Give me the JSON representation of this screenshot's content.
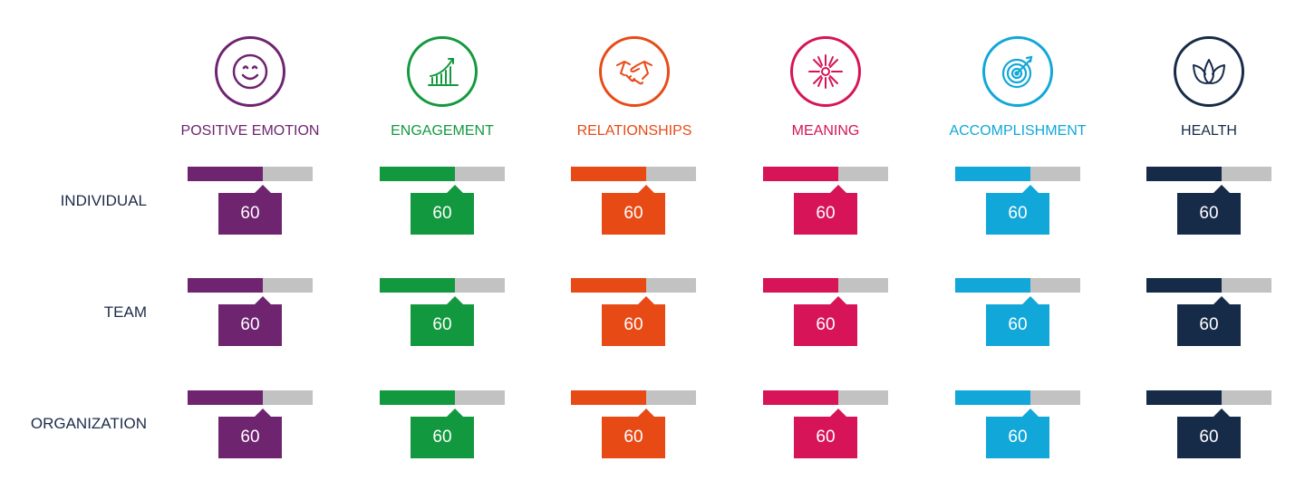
{
  "columns": [
    {
      "key": "positive-emotion",
      "label": "POSITIVE EMOTION",
      "color": "#6f2470",
      "icon": "smiley-icon"
    },
    {
      "key": "engagement",
      "label": "ENGAGEMENT",
      "color": "#12993f",
      "icon": "growth-chart-icon"
    },
    {
      "key": "relationships",
      "label": "RELATIONSHIPS",
      "color": "#e84a16",
      "icon": "handshake-icon"
    },
    {
      "key": "meaning",
      "label": "MEANING",
      "color": "#d61457",
      "icon": "starburst-icon"
    },
    {
      "key": "accomplishment",
      "label": "ACCOMPLISHMENT",
      "color": "#11a7d8",
      "icon": "target-icon"
    },
    {
      "key": "health",
      "label": "HEALTH",
      "color": "#162b48",
      "icon": "leaf-icon"
    }
  ],
  "rows": [
    {
      "key": "individual",
      "label": "INDIVIDUAL",
      "values": [
        60,
        60,
        60,
        60,
        60,
        60
      ]
    },
    {
      "key": "team",
      "label": "TEAM",
      "values": [
        60,
        60,
        60,
        60,
        60,
        60
      ]
    },
    {
      "key": "organization",
      "label": "ORGANIZATION",
      "values": [
        60,
        60,
        60,
        60,
        60,
        60
      ]
    }
  ]
}
